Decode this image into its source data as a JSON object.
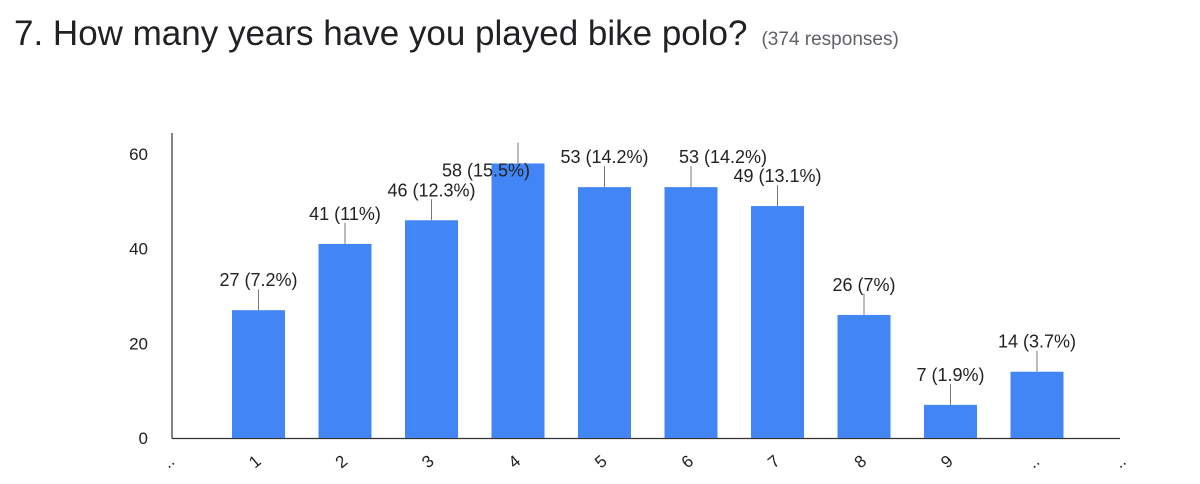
{
  "header": {
    "question": "7. How many years have you played bike polo?",
    "responses": "(374 responses)"
  },
  "chart_data": {
    "type": "bar",
    "title": "7. How many years have you played bike polo?",
    "xlabel": "",
    "ylabel": "",
    "categories": [
      "..",
      "1",
      "2",
      "3",
      "4",
      "5",
      "6",
      "7",
      "8",
      "9",
      "..",
      ".."
    ],
    "values": [
      null,
      27,
      41,
      46,
      58,
      53,
      53,
      49,
      26,
      7,
      14,
      null
    ],
    "data_labels": [
      "",
      "27 (7.2%)",
      "41 (11%)",
      "46 (12.3%)",
      "58 (15.5%)",
      "53 (14.2%)",
      "53 (14.2%)",
      "49 (13.1%)",
      "26 (7%)",
      "7 (1.9%)",
      "14 (3.7%)",
      ""
    ],
    "y_ticks": [
      0,
      20,
      40,
      60
    ],
    "ylim": [
      0,
      60
    ],
    "grid": false,
    "legend": "none",
    "colors": {
      "bar": "#4285f4",
      "axis": "#333333",
      "label_text": "#222222"
    }
  }
}
